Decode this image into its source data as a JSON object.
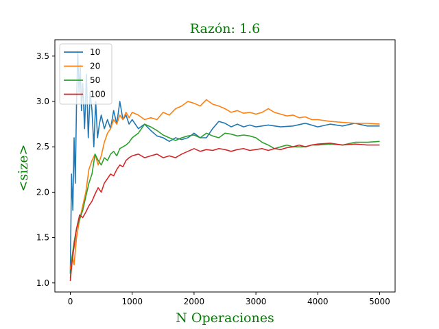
{
  "chart_data": {
    "type": "line",
    "title": "Razón: 1.6",
    "xlabel": "N Operaciones",
    "ylabel": "<size>",
    "xlim": [
      -250,
      5250
    ],
    "ylim": [
      0.9,
      3.68
    ],
    "xticks": [
      0,
      1000,
      2000,
      3000,
      4000,
      5000
    ],
    "yticks": [
      1.0,
      1.5,
      2.0,
      2.5,
      3.0,
      3.5
    ],
    "grid": false,
    "legend_position": "top-left",
    "series": [
      {
        "name": "10",
        "color": "#1f77b4",
        "x": [
          0,
          20,
          40,
          60,
          80,
          100,
          120,
          140,
          160,
          180,
          200,
          230,
          260,
          290,
          320,
          350,
          380,
          410,
          440,
          470,
          500,
          550,
          600,
          650,
          700,
          750,
          800,
          850,
          900,
          950,
          1000,
          1100,
          1200,
          1300,
          1400,
          1500,
          1600,
          1700,
          1800,
          1900,
          2000,
          2100,
          2200,
          2300,
          2400,
          2500,
          2600,
          2700,
          2800,
          2900,
          3000,
          3200,
          3400,
          3600,
          3800,
          4000,
          4200,
          4400,
          4600,
          4800,
          5000
        ],
        "y": [
          1.1,
          2.2,
          1.8,
          2.6,
          2.1,
          3.0,
          3.55,
          3.1,
          3.4,
          2.9,
          3.2,
          2.7,
          3.3,
          2.6,
          3.1,
          2.9,
          2.5,
          3.0,
          2.6,
          2.75,
          2.85,
          2.7,
          2.8,
          2.7,
          2.9,
          2.75,
          3.0,
          2.8,
          2.85,
          2.75,
          2.8,
          2.7,
          2.75,
          2.68,
          2.62,
          2.6,
          2.56,
          2.6,
          2.58,
          2.6,
          2.65,
          2.6,
          2.6,
          2.7,
          2.78,
          2.76,
          2.72,
          2.75,
          2.72,
          2.74,
          2.72,
          2.74,
          2.72,
          2.73,
          2.76,
          2.72,
          2.75,
          2.73,
          2.76,
          2.73,
          2.73
        ]
      },
      {
        "name": "20",
        "color": "#ff7f0e",
        "x": [
          0,
          30,
          60,
          100,
          150,
          200,
          250,
          300,
          350,
          400,
          450,
          500,
          550,
          600,
          650,
          700,
          750,
          800,
          850,
          900,
          950,
          1000,
          1100,
          1200,
          1300,
          1400,
          1500,
          1600,
          1700,
          1800,
          1900,
          2000,
          2100,
          2200,
          2300,
          2400,
          2500,
          2600,
          2700,
          2800,
          2900,
          3000,
          3100,
          3200,
          3300,
          3400,
          3500,
          3600,
          3700,
          3800,
          3900,
          4000,
          4200,
          4400,
          4600,
          4800,
          5000
        ],
        "y": [
          1.15,
          1.3,
          1.2,
          1.5,
          1.7,
          1.85,
          2.0,
          2.25,
          2.35,
          2.42,
          2.3,
          2.4,
          2.55,
          2.65,
          2.7,
          2.8,
          2.75,
          2.85,
          2.8,
          2.88,
          2.82,
          2.88,
          2.85,
          2.8,
          2.82,
          2.8,
          2.88,
          2.85,
          2.92,
          2.95,
          3.0,
          2.98,
          2.95,
          3.02,
          2.97,
          2.95,
          2.92,
          2.88,
          2.9,
          2.87,
          2.88,
          2.86,
          2.88,
          2.92,
          2.88,
          2.86,
          2.84,
          2.85,
          2.82,
          2.83,
          2.8,
          2.8,
          2.78,
          2.77,
          2.76,
          2.76,
          2.75
        ]
      },
      {
        "name": "50",
        "color": "#2ca02c",
        "x": [
          0,
          30,
          60,
          100,
          150,
          200,
          250,
          300,
          350,
          400,
          450,
          500,
          550,
          600,
          650,
          700,
          750,
          800,
          850,
          900,
          950,
          1000,
          1100,
          1200,
          1300,
          1400,
          1500,
          1600,
          1700,
          1800,
          1900,
          2000,
          2100,
          2200,
          2300,
          2400,
          2500,
          2600,
          2700,
          2800,
          2900,
          3000,
          3100,
          3200,
          3300,
          3400,
          3500,
          3600,
          3700,
          3800,
          3900,
          4000,
          4200,
          4400,
          4600,
          4800,
          5000
        ],
        "y": [
          1.05,
          1.3,
          1.45,
          1.6,
          1.7,
          1.8,
          1.95,
          2.1,
          2.2,
          2.42,
          2.35,
          2.3,
          2.38,
          2.35,
          2.42,
          2.45,
          2.4,
          2.48,
          2.5,
          2.52,
          2.55,
          2.6,
          2.65,
          2.75,
          2.72,
          2.68,
          2.63,
          2.6,
          2.57,
          2.6,
          2.62,
          2.63,
          2.6,
          2.65,
          2.62,
          2.6,
          2.65,
          2.64,
          2.62,
          2.63,
          2.62,
          2.6,
          2.55,
          2.52,
          2.48,
          2.5,
          2.52,
          2.5,
          2.5,
          2.5,
          2.52,
          2.52,
          2.53,
          2.52,
          2.55,
          2.55,
          2.56
        ]
      },
      {
        "name": "100",
        "color": "#d62728",
        "x": [
          0,
          30,
          60,
          100,
          150,
          200,
          250,
          300,
          350,
          400,
          450,
          500,
          550,
          600,
          650,
          700,
          750,
          800,
          850,
          900,
          950,
          1000,
          1100,
          1200,
          1300,
          1400,
          1500,
          1600,
          1700,
          1800,
          1900,
          2000,
          2100,
          2200,
          2300,
          2400,
          2500,
          2600,
          2700,
          2800,
          2900,
          3000,
          3100,
          3200,
          3300,
          3400,
          3500,
          3600,
          3700,
          3800,
          3900,
          4000,
          4200,
          4400,
          4600,
          4800,
          5000
        ],
        "y": [
          1.02,
          1.25,
          1.4,
          1.6,
          1.75,
          1.72,
          1.78,
          1.85,
          1.9,
          1.98,
          2.05,
          2.0,
          2.1,
          2.15,
          2.2,
          2.18,
          2.25,
          2.3,
          2.28,
          2.35,
          2.38,
          2.4,
          2.42,
          2.38,
          2.4,
          2.42,
          2.38,
          2.4,
          2.38,
          2.42,
          2.45,
          2.48,
          2.45,
          2.47,
          2.46,
          2.48,
          2.47,
          2.45,
          2.47,
          2.48,
          2.46,
          2.47,
          2.48,
          2.46,
          2.48,
          2.47,
          2.49,
          2.5,
          2.52,
          2.5,
          2.52,
          2.53,
          2.54,
          2.52,
          2.53,
          2.52,
          2.52
        ]
      }
    ]
  }
}
